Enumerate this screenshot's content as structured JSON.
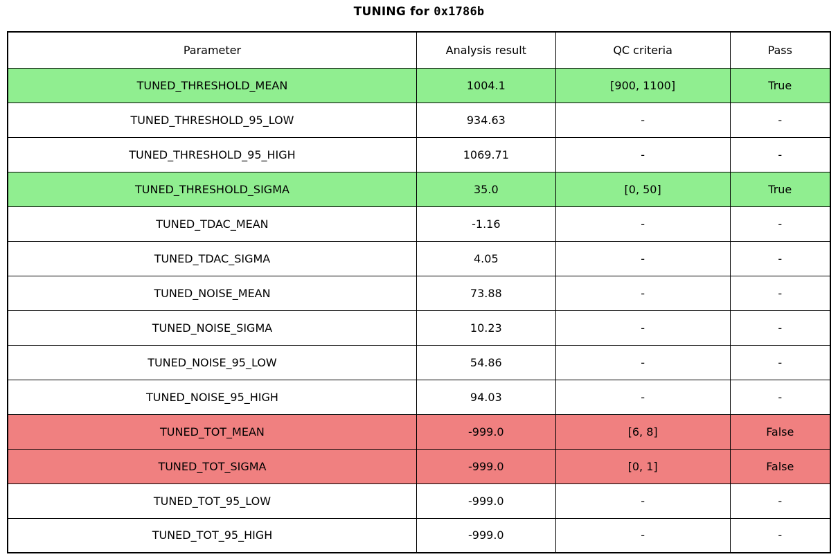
{
  "title": {
    "prefix": "TUNING for ",
    "chip_id": "0x1786b",
    "full": "TUNING for 0x1786b"
  },
  "colors": {
    "pass_row": "#90ee90",
    "fail_row": "#f08080",
    "neutral_row": "#ffffff",
    "border": "#000000",
    "text": "#000000",
    "background": "#ffffff"
  },
  "chart_data": {
    "type": "table",
    "title": "TUNING for 0x1786b",
    "columns": [
      "Parameter",
      "Analysis result",
      "QC criteria",
      "Pass"
    ],
    "rows": [
      {
        "parameter": "TUNED_THRESHOLD_MEAN",
        "analysis_result": "1004.1",
        "qc_criteria": "[900, 1100]",
        "pass": "True",
        "status": "pass"
      },
      {
        "parameter": "TUNED_THRESHOLD_95_LOW",
        "analysis_result": "934.63",
        "qc_criteria": "-",
        "pass": "-",
        "status": "neutral"
      },
      {
        "parameter": "TUNED_THRESHOLD_95_HIGH",
        "analysis_result": "1069.71",
        "qc_criteria": "-",
        "pass": "-",
        "status": "neutral"
      },
      {
        "parameter": "TUNED_THRESHOLD_SIGMA",
        "analysis_result": "35.0",
        "qc_criteria": "[0, 50]",
        "pass": "True",
        "status": "pass"
      },
      {
        "parameter": "TUNED_TDAC_MEAN",
        "analysis_result": "-1.16",
        "qc_criteria": "-",
        "pass": "-",
        "status": "neutral"
      },
      {
        "parameter": "TUNED_TDAC_SIGMA",
        "analysis_result": "4.05",
        "qc_criteria": "-",
        "pass": "-",
        "status": "neutral"
      },
      {
        "parameter": "TUNED_NOISE_MEAN",
        "analysis_result": "73.88",
        "qc_criteria": "-",
        "pass": "-",
        "status": "neutral"
      },
      {
        "parameter": "TUNED_NOISE_SIGMA",
        "analysis_result": "10.23",
        "qc_criteria": "-",
        "pass": "-",
        "status": "neutral"
      },
      {
        "parameter": "TUNED_NOISE_95_LOW",
        "analysis_result": "54.86",
        "qc_criteria": "-",
        "pass": "-",
        "status": "neutral"
      },
      {
        "parameter": "TUNED_NOISE_95_HIGH",
        "analysis_result": "94.03",
        "qc_criteria": "-",
        "pass": "-",
        "status": "neutral"
      },
      {
        "parameter": "TUNED_TOT_MEAN",
        "analysis_result": "-999.0",
        "qc_criteria": "[6, 8]",
        "pass": "False",
        "status": "fail"
      },
      {
        "parameter": "TUNED_TOT_SIGMA",
        "analysis_result": "-999.0",
        "qc_criteria": "[0, 1]",
        "pass": "False",
        "status": "fail"
      },
      {
        "parameter": "TUNED_TOT_95_LOW",
        "analysis_result": "-999.0",
        "qc_criteria": "-",
        "pass": "-",
        "status": "neutral"
      },
      {
        "parameter": "TUNED_TOT_95_HIGH",
        "analysis_result": "-999.0",
        "qc_criteria": "-",
        "pass": "-",
        "status": "neutral"
      }
    ],
    "layout": {
      "grid": false,
      "legend": false,
      "header_background": "#ffffff"
    }
  }
}
